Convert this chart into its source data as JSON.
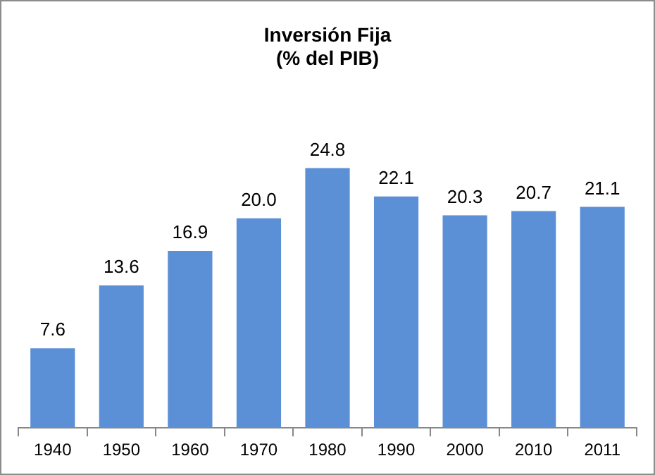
{
  "chart_data": {
    "type": "bar",
    "title": "Inversión Fija",
    "subtitle": "(% del PIB)",
    "categories": [
      "1940",
      "1950",
      "1960",
      "1970",
      "1980",
      "1990",
      "2000",
      "2010",
      "2011"
    ],
    "values": [
      7.6,
      13.6,
      16.9,
      20.0,
      24.8,
      22.1,
      20.3,
      20.7,
      21.1
    ],
    "value_labels": [
      "7.6",
      "13.6",
      "16.9",
      "20.0",
      "24.8",
      "22.1",
      "20.3",
      "20.7",
      "21.1"
    ],
    "color": "#5b8fd6",
    "legend": false,
    "grid": false
  }
}
